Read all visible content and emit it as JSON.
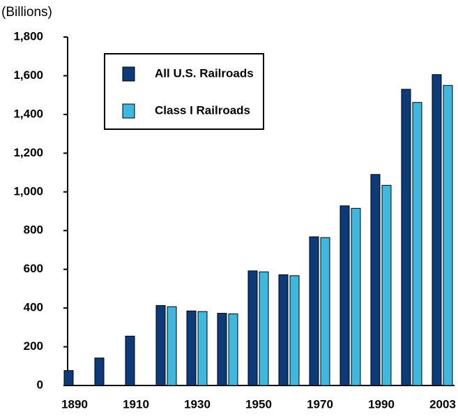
{
  "chart_data": {
    "type": "bar",
    "subtitle": "(Billions)",
    "categories": [
      "1890",
      null,
      "1910",
      null,
      "1930",
      null,
      "1950",
      null,
      "1970",
      null,
      "1990",
      null,
      "2003"
    ],
    "series": [
      {
        "name": "All U.S. Railroads",
        "color": "#0d3b7a",
        "values": [
          77,
          142,
          255,
          413,
          385,
          373,
          592,
          572,
          768,
          928,
          1090,
          1530,
          1606
        ]
      },
      {
        "name": "Class I Railroads",
        "color": "#3fb8e0",
        "values": [
          null,
          null,
          null,
          407,
          382,
          370,
          587,
          567,
          764,
          915,
          1034,
          1462,
          1550
        ]
      }
    ],
    "ylim": [
      0,
      1800
    ],
    "yticks": [
      0,
      200,
      400,
      600,
      800,
      {
        "value": 1000,
        "label": "1,000"
      },
      {
        "value": 1200,
        "label": "1,200"
      },
      {
        "value": 1400,
        "label": "1,400"
      },
      {
        "value": 1600,
        "label": "1,600"
      },
      {
        "value": 1800,
        "label": "1,800"
      }
    ],
    "legend": "upper left"
  }
}
